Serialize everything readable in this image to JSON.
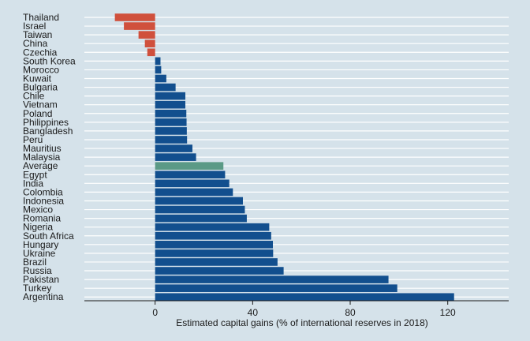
{
  "chart_data": {
    "type": "bar",
    "orientation": "horizontal",
    "title": "",
    "xlabel": "Estimated capital gains (% of international reserves in 2018)",
    "ylabel": "",
    "xlim": [
      -29,
      145
    ],
    "xticks": [
      0,
      40,
      80,
      120
    ],
    "grid": true,
    "colors": {
      "positive": "#124f8e",
      "negative": "#d0503c",
      "highlight": "#5b9a86",
      "background": "#d5e2ea",
      "grid": "#ffffff"
    },
    "categories": [
      "Thailand",
      "Israel",
      "Taiwan",
      "China",
      "Czechia",
      "South Korea",
      "Morocco",
      "Kuwait",
      "Bulgaria",
      "Chile",
      "Vietnam",
      "Poland",
      "Philippines",
      "Bangladesh",
      "Peru",
      "Mauritius",
      "Malaysia",
      "Average",
      "Egypt",
      "India",
      "Colombia",
      "Indonesia",
      "Mexico",
      "Romania",
      "Nigeria",
      "South Africa",
      "Hungary",
      "Ukraine",
      "Brazil",
      "Russia",
      "Pakistan",
      "Turkey",
      "Argentina"
    ],
    "values": [
      -16.5,
      -12.8,
      -6.8,
      -4.2,
      -3.2,
      2.2,
      2.5,
      4.6,
      8.4,
      12.4,
      12.4,
      12.8,
      12.9,
      13.0,
      13.1,
      15.3,
      16.8,
      28.0,
      28.7,
      30.4,
      31.9,
      36.0,
      36.8,
      37.6,
      46.8,
      47.6,
      48.3,
      48.4,
      50.2,
      52.7,
      95.7,
      99.3,
      122.6
    ],
    "highlight": "Average"
  }
}
